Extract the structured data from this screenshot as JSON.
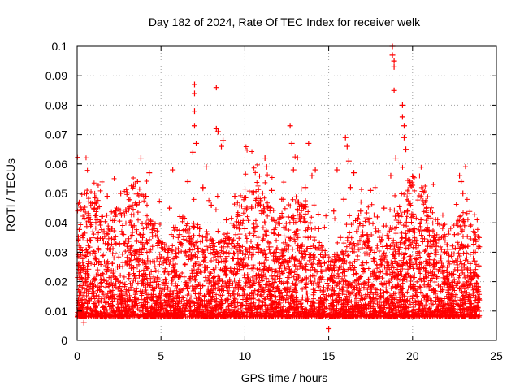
{
  "chart_data": {
    "type": "scatter",
    "title": "Day 182 of 2024, Rate Of TEC Index for receiver welk",
    "xlabel": "GPS time / hours",
    "ylabel": "ROTI / TECUs",
    "xlim": [
      0,
      25
    ],
    "ylim": [
      0,
      0.1
    ],
    "x_ticks": [
      "0",
      "5",
      "10",
      "15",
      "20",
      "25"
    ],
    "y_ticks": [
      "0",
      "0.01",
      "0.02",
      "0.03",
      "0.04",
      "0.05",
      "0.06",
      "0.07",
      "0.08",
      "0.09",
      "0.1"
    ],
    "x_tick_values": [
      0,
      5,
      10,
      15,
      20,
      25
    ],
    "y_tick_values": [
      0,
      0.01,
      0.02,
      0.03,
      0.04,
      0.05,
      0.06,
      0.07,
      0.08,
      0.09,
      0.1
    ],
    "grid": true,
    "marker": "+",
    "color": "#ff0000",
    "series": [
      {
        "values": [
          [
            0.1,
            0.012
          ],
          [
            0.2,
            0.024
          ],
          [
            0.3,
            0.018
          ],
          [
            0.4,
            0.006
          ],
          [
            0.5,
            0.021
          ],
          [
            0.6,
            0.03
          ],
          [
            0.7,
            0.011
          ],
          [
            0.8,
            0.034
          ],
          [
            0.9,
            0.009
          ],
          [
            1.0,
            0.016
          ],
          [
            1.1,
            0.028
          ],
          [
            1.2,
            0.041
          ],
          [
            1.3,
            0.013
          ],
          [
            1.4,
            0.022
          ],
          [
            1.6,
            0.037
          ],
          [
            1.7,
            0.008
          ],
          [
            1.8,
            0.049
          ],
          [
            1.9,
            0.019
          ],
          [
            2.0,
            0.031
          ],
          [
            2.1,
            0.012
          ],
          [
            2.3,
            0.044
          ],
          [
            2.4,
            0.025
          ],
          [
            2.5,
            0.015
          ],
          [
            2.6,
            0.05
          ],
          [
            2.8,
            0.033
          ],
          [
            2.9,
            0.01
          ],
          [
            3.0,
            0.027
          ],
          [
            3.1,
            0.045
          ],
          [
            3.2,
            0.018
          ],
          [
            3.4,
            0.039
          ],
          [
            3.5,
            0.012
          ],
          [
            3.6,
            0.054
          ],
          [
            3.7,
            0.022
          ],
          [
            3.8,
            0.062
          ],
          [
            3.9,
            0.035
          ],
          [
            4.0,
            0.014
          ],
          [
            4.1,
            0.049
          ],
          [
            4.2,
            0.028
          ],
          [
            4.3,
            0.057
          ],
          [
            4.4,
            0.011
          ],
          [
            4.6,
            0.038
          ],
          [
            4.8,
            0.021
          ],
          [
            5.0,
            0.016
          ],
          [
            5.2,
            0.031
          ],
          [
            5.4,
            0.009
          ],
          [
            5.5,
            0.045
          ],
          [
            5.7,
            0.058
          ],
          [
            5.8,
            0.024
          ],
          [
            6.0,
            0.013
          ],
          [
            6.1,
            0.036
          ],
          [
            6.3,
            0.042
          ],
          [
            6.5,
            0.019
          ],
          [
            6.6,
            0.054
          ],
          [
            6.8,
            0.029
          ],
          [
            6.9,
            0.064
          ],
          [
            7.0,
            0.087
          ],
          [
            7.0,
            0.084
          ],
          [
            7.0,
            0.078
          ],
          [
            7.0,
            0.073
          ],
          [
            7.1,
            0.067
          ],
          [
            7.2,
            0.011
          ],
          [
            7.3,
            0.038
          ],
          [
            7.5,
            0.052
          ],
          [
            7.6,
            0.025
          ],
          [
            7.7,
            0.059
          ],
          [
            7.9,
            0.016
          ],
          [
            8.0,
            0.046
          ],
          [
            8.1,
            0.033
          ],
          [
            8.3,
            0.086
          ],
          [
            8.3,
            0.072
          ],
          [
            8.4,
            0.071
          ],
          [
            8.5,
            0.021
          ],
          [
            8.6,
            0.066
          ],
          [
            8.7,
            0.068
          ],
          [
            8.9,
            0.041
          ],
          [
            9.0,
            0.014
          ],
          [
            9.2,
            0.033
          ],
          [
            9.4,
            0.049
          ],
          [
            9.6,
            0.026
          ],
          [
            9.8,
            0.012
          ],
          [
            10.0,
            0.038
          ],
          [
            10.2,
            0.021
          ],
          [
            10.4,
            0.045
          ],
          [
            10.6,
            0.017
          ],
          [
            10.8,
            0.03
          ],
          [
            11.0,
            0.044
          ],
          [
            11.2,
            0.062
          ],
          [
            11.3,
            0.059
          ],
          [
            11.4,
            0.024
          ],
          [
            11.6,
            0.051
          ],
          [
            11.8,
            0.015
          ],
          [
            12.0,
            0.036
          ],
          [
            12.2,
            0.048
          ],
          [
            12.4,
            0.027
          ],
          [
            12.6,
            0.042
          ],
          [
            12.7,
            0.073
          ],
          [
            12.8,
            0.067
          ],
          [
            12.9,
            0.058
          ],
          [
            13.0,
            0.019
          ],
          [
            13.2,
            0.047
          ],
          [
            13.4,
            0.032
          ],
          [
            13.6,
            0.052
          ],
          [
            13.8,
            0.067
          ],
          [
            13.9,
            0.024
          ],
          [
            14.0,
            0.056
          ],
          [
            14.2,
            0.058
          ],
          [
            14.4,
            0.038
          ],
          [
            14.6,
            0.013
          ],
          [
            14.8,
            0.029
          ],
          [
            15.0,
            0.004
          ],
          [
            15.1,
            0.021
          ],
          [
            15.3,
            0.044
          ],
          [
            15.5,
            0.058
          ],
          [
            15.7,
            0.035
          ],
          [
            15.9,
            0.048
          ],
          [
            16.0,
            0.069
          ],
          [
            16.1,
            0.066
          ],
          [
            16.2,
            0.061
          ],
          [
            16.3,
            0.052
          ],
          [
            16.5,
            0.057
          ],
          [
            16.7,
            0.031
          ],
          [
            16.9,
            0.044
          ],
          [
            17.1,
            0.018
          ],
          [
            17.3,
            0.036
          ],
          [
            17.5,
            0.051
          ],
          [
            17.7,
            0.027
          ],
          [
            17.9,
            0.042
          ],
          [
            18.1,
            0.015
          ],
          [
            18.3,
            0.045
          ],
          [
            18.5,
            0.032
          ],
          [
            18.7,
            0.056
          ],
          [
            18.8,
            0.1
          ],
          [
            18.8,
            0.097
          ],
          [
            18.9,
            0.095
          ],
          [
            18.9,
            0.093
          ],
          [
            18.9,
            0.085
          ],
          [
            19.0,
            0.062
          ],
          [
            19.2,
            0.031
          ],
          [
            19.4,
            0.08
          ],
          [
            19.4,
            0.076
          ],
          [
            19.5,
            0.073
          ],
          [
            19.5,
            0.069
          ],
          [
            19.6,
            0.065
          ],
          [
            19.7,
            0.044
          ],
          [
            19.9,
            0.018
          ],
          [
            20.1,
            0.038
          ],
          [
            20.3,
            0.025
          ],
          [
            20.5,
            0.041
          ],
          [
            20.7,
            0.011
          ],
          [
            20.9,
            0.032
          ],
          [
            21.1,
            0.022
          ],
          [
            21.3,
            0.035
          ],
          [
            21.5,
            0.014
          ],
          [
            21.7,
            0.028
          ],
          [
            21.9,
            0.019
          ],
          [
            22.1,
            0.031
          ],
          [
            22.3,
            0.012
          ],
          [
            22.5,
            0.036
          ],
          [
            22.7,
            0.024
          ],
          [
            22.8,
            0.056
          ],
          [
            22.9,
            0.054
          ],
          [
            23.0,
            0.05
          ],
          [
            23.1,
            0.039
          ],
          [
            23.3,
            0.032
          ],
          [
            23.5,
            0.021
          ],
          [
            23.7,
            0.027
          ],
          [
            23.9,
            0.014
          ]
        ]
      }
    ]
  }
}
